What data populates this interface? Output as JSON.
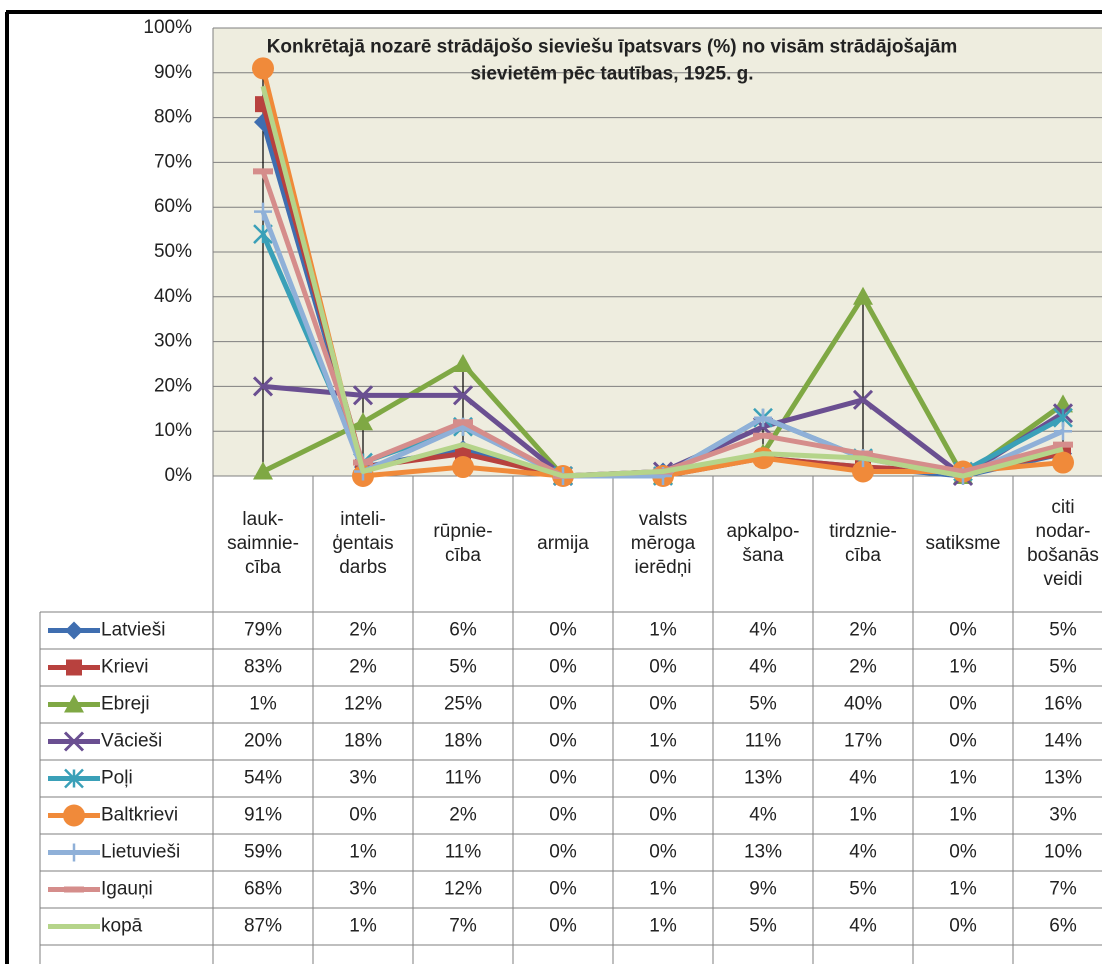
{
  "chart_data": {
    "type": "line",
    "title": "Konkrētajā nozarē strādājošo sieviešu īpatsvars (%) no visām strādājošajām\nsievietēm pēc tautības, 1925. g.",
    "categories": [
      "lauk-\nsaimnie-\ncība",
      "inteli-\nģentais\ndarbs",
      "rūpnie-\ncība",
      "armija",
      "valsts\nmēroga\nierēdņi",
      "apkalpo-\nšana",
      "tirdznie-\ncība",
      "satiksme",
      "citi\nnodar-\nbošanās\nveidi"
    ],
    "ylim": [
      0,
      100
    ],
    "yticks": [
      {
        "value": 0,
        "label": "0%"
      },
      {
        "value": 10,
        "label": "10%"
      },
      {
        "value": 20,
        "label": "20%"
      },
      {
        "value": 30,
        "label": "30%"
      },
      {
        "value": 40,
        "label": "40%"
      },
      {
        "value": 50,
        "label": "50%"
      },
      {
        "value": 60,
        "label": "60%"
      },
      {
        "value": 70,
        "label": "70%"
      },
      {
        "value": 80,
        "label": "80%"
      },
      {
        "value": 90,
        "label": "90%"
      },
      {
        "value": 100,
        "label": "100%"
      }
    ],
    "grid": true,
    "high_low_lines": true,
    "series": [
      {
        "name": "Latvieši",
        "color": "#3f6eb0",
        "marker": "diamond",
        "values": [
          79,
          2,
          6,
          0,
          1,
          4,
          2,
          0,
          5
        ],
        "value_labels": [
          "79%",
          "2%",
          "6%",
          "0%",
          "1%",
          "4%",
          "2%",
          "0%",
          "5%"
        ]
      },
      {
        "name": "Krievi",
        "color": "#b8413e",
        "marker": "square",
        "values": [
          83,
          2,
          5,
          0,
          0,
          4,
          2,
          1,
          5
        ],
        "value_labels": [
          "83%",
          "2%",
          "5%",
          "0%",
          "0%",
          "4%",
          "2%",
          "1%",
          "5%"
        ]
      },
      {
        "name": "Ebreji",
        "color": "#7fa844",
        "marker": "triangle",
        "values": [
          1,
          12,
          25,
          0,
          0,
          5,
          40,
          0,
          16
        ],
        "value_labels": [
          "1%",
          "12%",
          "25%",
          "0%",
          "0%",
          "5%",
          "40%",
          "0%",
          "16%"
        ]
      },
      {
        "name": "Vācieši",
        "color": "#6a4f91",
        "marker": "x",
        "values": [
          20,
          18,
          18,
          0,
          1,
          11,
          17,
          0,
          14
        ],
        "value_labels": [
          "20%",
          "18%",
          "18%",
          "0%",
          "1%",
          "11%",
          "17%",
          "0%",
          "14%"
        ]
      },
      {
        "name": "Poļi",
        "color": "#3aa0b8",
        "marker": "star",
        "values": [
          54,
          3,
          11,
          0,
          0,
          13,
          4,
          1,
          13
        ],
        "value_labels": [
          "54%",
          "3%",
          "11%",
          "0%",
          "0%",
          "13%",
          "4%",
          "1%",
          "13%"
        ]
      },
      {
        "name": "Baltkrievi",
        "color": "#f08a3a",
        "marker": "circle",
        "values": [
          91,
          0,
          2,
          0,
          0,
          4,
          1,
          1,
          3
        ],
        "value_labels": [
          "91%",
          "0%",
          "2%",
          "0%",
          "0%",
          "4%",
          "1%",
          "1%",
          "3%"
        ]
      },
      {
        "name": "Lietuvieši",
        "color": "#8fb0d8",
        "marker": "plus",
        "values": [
          59,
          1,
          11,
          0,
          0,
          13,
          4,
          0,
          10
        ],
        "value_labels": [
          "59%",
          "1%",
          "11%",
          "0%",
          "0%",
          "13%",
          "4%",
          "0%",
          "10%"
        ]
      },
      {
        "name": "Igauņi",
        "color": "#d58d8b",
        "marker": "dash",
        "values": [
          68,
          3,
          12,
          0,
          1,
          9,
          5,
          1,
          7
        ],
        "value_labels": [
          "68%",
          "3%",
          "12%",
          "0%",
          "1%",
          "9%",
          "5%",
          "1%",
          "7%"
        ]
      },
      {
        "name": "kopā",
        "color": "#b5d48a",
        "marker": "none",
        "values": [
          87,
          1,
          7,
          0,
          1,
          5,
          4,
          0,
          6
        ],
        "value_labels": [
          "87%",
          "1%",
          "7%",
          "0%",
          "1%",
          "5%",
          "4%",
          "0%",
          "6%"
        ]
      }
    ]
  }
}
